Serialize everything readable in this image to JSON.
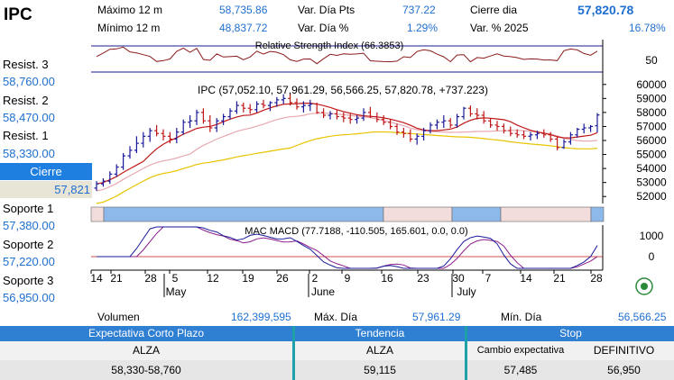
{
  "ticker": "IPC",
  "stats": {
    "max12_label": "Máximo 12 m",
    "max12_value": "58,735.86",
    "min12_label": "Mínimo 12 m",
    "min12_value": "48,837.72",
    "vardia_pts_label": "Var. Día Pts",
    "vardia_pts_value": "737.22",
    "vardia_pct_label": "Var. Día %",
    "vardia_pct_value": "1.29%",
    "cierre_label": "Cierre dia",
    "cierre_value": "57,820.78",
    "var2025_label": "Var. % 2025",
    "var2025_value": "16.78%"
  },
  "levels": {
    "r3_label": "Resist. 3",
    "r3_value": "58,760.00",
    "r2_label": "Resist. 2",
    "r2_value": "58,470.00",
    "r1_label": "Resist. 1",
    "r1_value": "58,330.00",
    "close_label": "Cierre",
    "close_value": "57,821",
    "s1_label": "Soporte 1",
    "s1_value": "57,380.00",
    "s2_label": "Soporte 2",
    "s2_value": "57,220.00",
    "s3_label": "Soporte 3",
    "s3_value": "56,950.00"
  },
  "footer": {
    "volumen_label": "Volumen",
    "volumen_value": "162,399,595",
    "maxdia_label": "Máx. Día",
    "maxdia_value": "57,961.29",
    "mindia_label": "Mín. Día",
    "mindia_value": "56,566.25",
    "col1_header": "Expectativa Corto Plazo",
    "col2_header": "Tendencia",
    "col3_header": "Stop",
    "col1_row1": "ALZA",
    "col1_row2": "58,330-58,760",
    "col2_row1": "ALZA",
    "col2_row2": "59,115",
    "col3_sub1": "Cambio expectativa",
    "col3_sub2": "DEFINITIVO",
    "col3_val1": "57,485",
    "col3_val2": "56,950"
  },
  "chart_data": {
    "type": "line",
    "price_title": "IPC (57,052.10, 57,961.29, 56,566.25, 57,820.78, +737.223)",
    "rsi_title": "Relative Strength Index (66.3853)",
    "macd_title": "MAC MACD (77.7188, -110.505, 165.601, 0.0, 0.0)",
    "price_ylim": [
      51500,
      60500
    ],
    "price_ticks": [
      "60000",
      "59000",
      "58000",
      "57000",
      "56000",
      "55000",
      "54000",
      "53000",
      "52000"
    ],
    "rsi_tick": "50",
    "macd_ticks": [
      "1000",
      "0"
    ],
    "x_tick_labels": [
      "14",
      "21",
      "28",
      "5",
      "12",
      "19",
      "26",
      "2",
      "9",
      "16",
      "23",
      "30",
      "7",
      "14",
      "21",
      "28"
    ],
    "month_labels": [
      "May",
      "June",
      "July"
    ],
    "ohlc": [
      [
        52600,
        53100,
        52400,
        52900
      ],
      [
        52900,
        53300,
        52700,
        53100
      ],
      [
        53100,
        53800,
        52900,
        53600
      ],
      [
        53600,
        54300,
        53400,
        54100
      ],
      [
        54100,
        55100,
        53900,
        54900
      ],
      [
        54900,
        55600,
        54700,
        55300
      ],
      [
        55300,
        56300,
        55100,
        55800
      ],
      [
        55800,
        56600,
        55500,
        56300
      ],
      [
        56300,
        56900,
        55900,
        56700
      ],
      [
        56700,
        57100,
        56300,
        56500
      ],
      [
        56500,
        56800,
        56000,
        56300
      ],
      [
        56300,
        56600,
        55800,
        56100
      ],
      [
        56100,
        56900,
        55800,
        56600
      ],
      [
        56600,
        57500,
        56400,
        57300
      ],
      [
        57300,
        57800,
        56900,
        57400
      ],
      [
        57400,
        58200,
        57100,
        58000
      ],
      [
        58000,
        58300,
        57200,
        57400
      ],
      [
        57400,
        57800,
        56600,
        56900
      ],
      [
        56900,
        57600,
        56600,
        57400
      ],
      [
        57400,
        57900,
        57100,
        57700
      ],
      [
        57700,
        58300,
        57500,
        58100
      ],
      [
        58100,
        58800,
        57900,
        58500
      ],
      [
        58500,
        58700,
        58000,
        58300
      ],
      [
        58300,
        58600,
        57900,
        58200
      ],
      [
        58200,
        58800,
        58000,
        58600
      ],
      [
        58600,
        58900,
        58300,
        58500
      ],
      [
        58500,
        58800,
        58100,
        58700
      ],
      [
        58700,
        59100,
        58400,
        58900
      ],
      [
        58900,
        59300,
        58600,
        59000
      ],
      [
        59000,
        59400,
        58500,
        58700
      ],
      [
        58700,
        59000,
        58200,
        58400
      ],
      [
        58400,
        58800,
        58000,
        58500
      ],
      [
        58500,
        58900,
        58100,
        58600
      ],
      [
        58600,
        58700,
        57900,
        58000
      ],
      [
        58000,
        58300,
        57600,
        57800
      ],
      [
        57800,
        58100,
        57500,
        57900
      ],
      [
        57900,
        58200,
        57500,
        57700
      ],
      [
        57700,
        58000,
        57300,
        57600
      ],
      [
        57600,
        57900,
        57200,
        57500
      ],
      [
        57500,
        57800,
        57200,
        57600
      ],
      [
        57600,
        58300,
        57400,
        58000
      ],
      [
        58000,
        58400,
        57600,
        57700
      ],
      [
        57700,
        58000,
        57300,
        57500
      ],
      [
        57500,
        57800,
        57100,
        57300
      ],
      [
        57300,
        57500,
        56800,
        57000
      ],
      [
        57000,
        57200,
        56400,
        56600
      ],
      [
        56600,
        56900,
        56200,
        56500
      ],
      [
        56500,
        56800,
        55900,
        56100
      ],
      [
        56100,
        56500,
        55700,
        56300
      ],
      [
        56300,
        56900,
        56000,
        56700
      ],
      [
        56700,
        57300,
        56500,
        57100
      ],
      [
        57100,
        57500,
        56800,
        57300
      ],
      [
        57300,
        57800,
        56900,
        57400
      ],
      [
        57400,
        57600,
        56900,
        57100
      ],
      [
        57100,
        57900,
        56900,
        57700
      ],
      [
        57700,
        58400,
        57500,
        58300
      ],
      [
        58300,
        58500,
        57700,
        57900
      ],
      [
        57900,
        58300,
        57500,
        57800
      ],
      [
        57800,
        58100,
        57200,
        57400
      ],
      [
        57400,
        57600,
        56900,
        57100
      ],
      [
        57100,
        57400,
        56700,
        57000
      ],
      [
        57000,
        57200,
        56500,
        56700
      ],
      [
        56700,
        57000,
        56300,
        56500
      ],
      [
        56500,
        56800,
        56200,
        56400
      ],
      [
        56400,
        56700,
        56100,
        56300
      ],
      [
        56300,
        56600,
        56000,
        56400
      ],
      [
        56400,
        56700,
        56100,
        56500
      ],
      [
        56500,
        56800,
        56200,
        56400
      ],
      [
        56400,
        56600,
        55900,
        56100
      ],
      [
        56100,
        56300,
        55300,
        55500
      ],
      [
        55500,
        56100,
        55400,
        55900
      ],
      [
        55900,
        56600,
        55700,
        56400
      ],
      [
        56400,
        56900,
        56200,
        56800
      ],
      [
        56800,
        57200,
        56500,
        56900
      ],
      [
        56900,
        57100,
        56600,
        57000
      ],
      [
        57052,
        57961,
        56566,
        57821
      ]
    ],
    "ma_short": [],
    "bands": [
      "#f2dcdc",
      "#8db8ea",
      "#f2dcdc",
      "#8db8ea",
      "#f2dcdc",
      "#8db8ea"
    ]
  }
}
